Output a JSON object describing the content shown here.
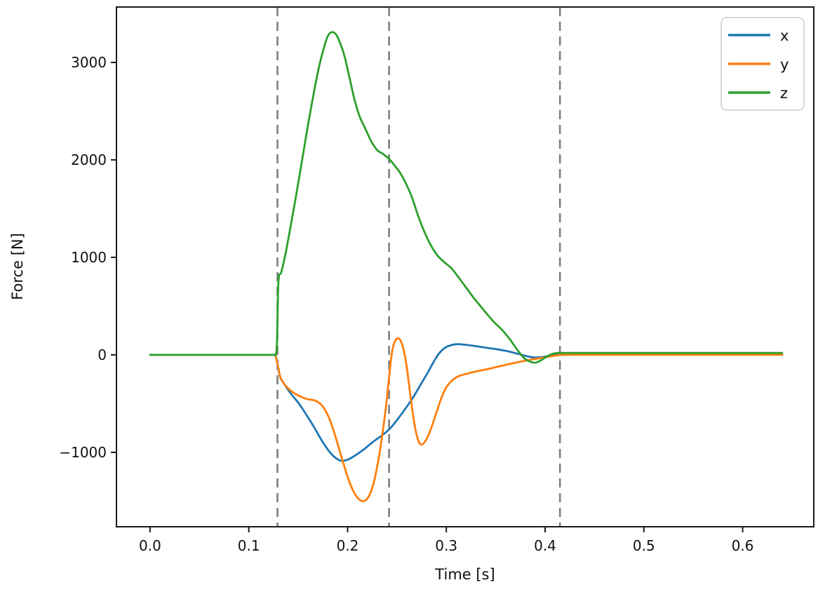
{
  "chart_data": {
    "type": "line",
    "title": "",
    "xlabel": "Time [s]",
    "ylabel": "Force [N]",
    "xlim": [
      -0.034,
      0.672
    ],
    "ylim": [
      -1763,
      3568
    ],
    "xticks": {
      "values": [
        0.0,
        0.1,
        0.2,
        0.3,
        0.4,
        0.5,
        0.6
      ],
      "labels": [
        "0.0",
        "0.1",
        "0.2",
        "0.3",
        "0.4",
        "0.5",
        "0.6"
      ]
    },
    "yticks": {
      "values": [
        -1000,
        0,
        1000,
        2000,
        3000
      ],
      "labels": [
        "−1000",
        "0",
        "1000",
        "2000",
        "3000"
      ]
    },
    "grid": false,
    "legend_position": "upper right",
    "vlines": {
      "x": [
        0.129,
        0.242,
        0.415
      ],
      "color": "#7f7f7f",
      "linestyle": "dashed"
    },
    "series": [
      {
        "name": "x",
        "color": "#1f77b4",
        "points": [
          [
            0,
            0
          ],
          [
            0.04,
            0
          ],
          [
            0.08,
            0
          ],
          [
            0.11,
            0
          ],
          [
            0.125,
            0
          ],
          [
            0.127,
            -5
          ],
          [
            0.1285,
            -60
          ],
          [
            0.13,
            -150
          ],
          [
            0.132,
            -235
          ],
          [
            0.136,
            -300
          ],
          [
            0.142,
            -390
          ],
          [
            0.15,
            -490
          ],
          [
            0.158,
            -610
          ],
          [
            0.166,
            -740
          ],
          [
            0.174,
            -880
          ],
          [
            0.181,
            -985
          ],
          [
            0.187,
            -1050
          ],
          [
            0.193,
            -1085
          ],
          [
            0.2,
            -1075
          ],
          [
            0.208,
            -1030
          ],
          [
            0.217,
            -965
          ],
          [
            0.226,
            -890
          ],
          [
            0.235,
            -825
          ],
          [
            0.243,
            -755
          ],
          [
            0.251,
            -655
          ],
          [
            0.259,
            -545
          ],
          [
            0.267,
            -425
          ],
          [
            0.274,
            -305
          ],
          [
            0.281,
            -185
          ],
          [
            0.287,
            -75
          ],
          [
            0.293,
            20
          ],
          [
            0.299,
            75
          ],
          [
            0.305,
            100
          ],
          [
            0.311,
            110
          ],
          [
            0.318,
            105
          ],
          [
            0.326,
            95
          ],
          [
            0.336,
            80
          ],
          [
            0.348,
            62
          ],
          [
            0.36,
            42
          ],
          [
            0.371,
            15
          ],
          [
            0.381,
            -12
          ],
          [
            0.389,
            -27
          ],
          [
            0.397,
            -22
          ],
          [
            0.405,
            -8
          ],
          [
            0.412,
            2
          ],
          [
            0.42,
            5
          ],
          [
            0.46,
            5
          ],
          [
            0.52,
            5
          ],
          [
            0.58,
            5
          ],
          [
            0.64,
            5
          ]
        ]
      },
      {
        "name": "y",
        "color": "#ff7f0e",
        "points": [
          [
            0,
            0
          ],
          [
            0.04,
            0
          ],
          [
            0.08,
            0
          ],
          [
            0.11,
            0
          ],
          [
            0.125,
            0
          ],
          [
            0.127,
            -8
          ],
          [
            0.1285,
            -70
          ],
          [
            0.13,
            -140
          ],
          [
            0.132,
            -230
          ],
          [
            0.136,
            -300
          ],
          [
            0.141,
            -355
          ],
          [
            0.147,
            -400
          ],
          [
            0.154,
            -435
          ],
          [
            0.16,
            -455
          ],
          [
            0.166,
            -465
          ],
          [
            0.171,
            -490
          ],
          [
            0.176,
            -545
          ],
          [
            0.181,
            -640
          ],
          [
            0.186,
            -780
          ],
          [
            0.191,
            -950
          ],
          [
            0.196,
            -1120
          ],
          [
            0.201,
            -1280
          ],
          [
            0.206,
            -1400
          ],
          [
            0.211,
            -1475
          ],
          [
            0.215,
            -1500
          ],
          [
            0.219,
            -1485
          ],
          [
            0.223,
            -1420
          ],
          [
            0.227,
            -1290
          ],
          [
            0.231,
            -1090
          ],
          [
            0.235,
            -830
          ],
          [
            0.239,
            -520
          ],
          [
            0.242,
            -230
          ],
          [
            0.245,
            30
          ],
          [
            0.248,
            140
          ],
          [
            0.251,
            170
          ],
          [
            0.254,
            140
          ],
          [
            0.257,
            40
          ],
          [
            0.26,
            -130
          ],
          [
            0.263,
            -370
          ],
          [
            0.266,
            -600
          ],
          [
            0.269,
            -780
          ],
          [
            0.272,
            -890
          ],
          [
            0.275,
            -920
          ],
          [
            0.279,
            -880
          ],
          [
            0.284,
            -770
          ],
          [
            0.289,
            -620
          ],
          [
            0.294,
            -470
          ],
          [
            0.299,
            -350
          ],
          [
            0.305,
            -270
          ],
          [
            0.312,
            -220
          ],
          [
            0.32,
            -195
          ],
          [
            0.33,
            -170
          ],
          [
            0.342,
            -145
          ],
          [
            0.355,
            -115
          ],
          [
            0.368,
            -85
          ],
          [
            0.38,
            -60
          ],
          [
            0.392,
            -38
          ],
          [
            0.403,
            -20
          ],
          [
            0.412,
            -6
          ],
          [
            0.42,
            0
          ],
          [
            0.46,
            0
          ],
          [
            0.52,
            0
          ],
          [
            0.58,
            0
          ],
          [
            0.64,
            0
          ]
        ]
      },
      {
        "name": "z",
        "color": "#2ca02c",
        "points": [
          [
            0,
            0
          ],
          [
            0.04,
            0
          ],
          [
            0.08,
            0
          ],
          [
            0.11,
            0
          ],
          [
            0.125,
            0
          ],
          [
            0.127,
            0
          ],
          [
            0.1285,
            120
          ],
          [
            0.13,
            750
          ],
          [
            0.133,
            850
          ],
          [
            0.137,
            1030
          ],
          [
            0.142,
            1300
          ],
          [
            0.148,
            1640
          ],
          [
            0.154,
            2000
          ],
          [
            0.16,
            2360
          ],
          [
            0.166,
            2700
          ],
          [
            0.171,
            2950
          ],
          [
            0.176,
            3150
          ],
          [
            0.18,
            3270
          ],
          [
            0.184,
            3310
          ],
          [
            0.188,
            3290
          ],
          [
            0.192,
            3210
          ],
          [
            0.197,
            3060
          ],
          [
            0.202,
            2840
          ],
          [
            0.207,
            2620
          ],
          [
            0.212,
            2450
          ],
          [
            0.218,
            2320
          ],
          [
            0.224,
            2190
          ],
          [
            0.23,
            2100
          ],
          [
            0.236,
            2060
          ],
          [
            0.242,
            2010
          ],
          [
            0.247,
            1950
          ],
          [
            0.253,
            1870
          ],
          [
            0.259,
            1760
          ],
          [
            0.265,
            1620
          ],
          [
            0.271,
            1440
          ],
          [
            0.277,
            1280
          ],
          [
            0.284,
            1130
          ],
          [
            0.291,
            1020
          ],
          [
            0.298,
            950
          ],
          [
            0.305,
            890
          ],
          [
            0.312,
            800
          ],
          [
            0.32,
            690
          ],
          [
            0.328,
            580
          ],
          [
            0.337,
            470
          ],
          [
            0.347,
            350
          ],
          [
            0.357,
            250
          ],
          [
            0.365,
            150
          ],
          [
            0.372,
            50
          ],
          [
            0.379,
            -35
          ],
          [
            0.385,
            -70
          ],
          [
            0.39,
            -80
          ],
          [
            0.396,
            -55
          ],
          [
            0.402,
            -15
          ],
          [
            0.408,
            12
          ],
          [
            0.414,
            20
          ],
          [
            0.43,
            20
          ],
          [
            0.47,
            20
          ],
          [
            0.53,
            20
          ],
          [
            0.6,
            20
          ],
          [
            0.64,
            20
          ]
        ]
      }
    ]
  }
}
